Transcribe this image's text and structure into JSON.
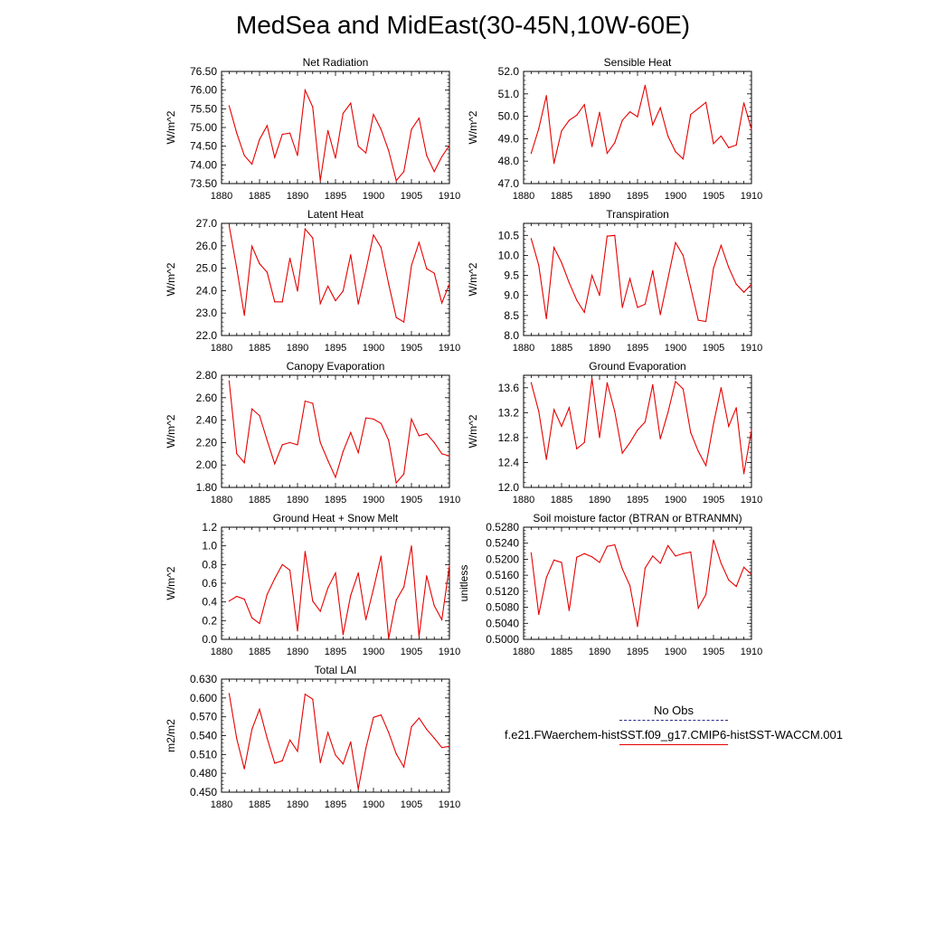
{
  "title": "MedSea and MidEast(30-45N,10W-60E)",
  "line_color": "#e60000",
  "legend": {
    "entries": [
      {
        "label": "No Obs",
        "style": "dashed",
        "color": "#2b2b8a"
      },
      {
        "label": "f.e21.FWaerchem-histSST.f09_g17.CMIP6-histSST-WACCM.001",
        "style": "solid",
        "color": "#e60000"
      }
    ]
  },
  "chart_data": [
    {
      "type": "line",
      "title": "Net Radiation",
      "ylabel": "W/m^2",
      "x": [
        1881,
        1882,
        1883,
        1884,
        1885,
        1886,
        1887,
        1888,
        1889,
        1890,
        1891,
        1892,
        1893,
        1894,
        1895,
        1896,
        1897,
        1898,
        1899,
        1900,
        1901,
        1902,
        1903,
        1904,
        1905,
        1906,
        1907,
        1908,
        1909,
        1910
      ],
      "ylim": [
        73.5,
        76.5
      ],
      "yticks": [
        "73.50",
        "74.00",
        "74.50",
        "75.00",
        "75.50",
        "76.00",
        "76.50"
      ],
      "xlim": [
        1880,
        1910
      ],
      "xticks": [
        "1880",
        "1885",
        "1890",
        "1895",
        "1900",
        "1905",
        "1910"
      ],
      "values": [
        75.58,
        74.85,
        74.25,
        74.02,
        74.68,
        75.05,
        74.2,
        74.82,
        74.85,
        74.25,
        76.0,
        75.55,
        73.58,
        74.92,
        74.18,
        75.38,
        75.65,
        74.5,
        74.32,
        75.35,
        74.95,
        74.38,
        73.58,
        73.82,
        74.95,
        75.25,
        74.25,
        73.82,
        74.22,
        74.52
      ]
    },
    {
      "type": "line",
      "title": "Sensible Heat",
      "ylabel": "W/m^2",
      "x": [
        1881,
        1882,
        1883,
        1884,
        1885,
        1886,
        1887,
        1888,
        1889,
        1890,
        1891,
        1892,
        1893,
        1894,
        1895,
        1896,
        1897,
        1898,
        1899,
        1900,
        1901,
        1902,
        1903,
        1904,
        1905,
        1906,
        1907,
        1908,
        1909,
        1910
      ],
      "ylim": [
        47.0,
        52.0
      ],
      "yticks": [
        "47.0",
        "48.0",
        "49.0",
        "50.0",
        "51.0",
        "52.0"
      ],
      "xlim": [
        1880,
        1910
      ],
      "xticks": [
        "1880",
        "1885",
        "1890",
        "1895",
        "1900",
        "1905",
        "1910"
      ],
      "values": [
        48.35,
        49.45,
        50.92,
        47.9,
        49.35,
        49.82,
        50.05,
        50.52,
        48.65,
        50.18,
        48.35,
        48.82,
        49.82,
        50.2,
        49.98,
        51.38,
        49.62,
        50.38,
        49.12,
        48.42,
        48.1,
        50.08,
        50.35,
        50.62,
        48.78,
        49.12,
        48.6,
        48.72,
        50.6,
        49.42
      ]
    },
    {
      "type": "line",
      "title": "Latent Heat",
      "ylabel": "W/m^2",
      "x": [
        1881,
        1882,
        1883,
        1884,
        1885,
        1886,
        1887,
        1888,
        1889,
        1890,
        1891,
        1892,
        1893,
        1894,
        1895,
        1896,
        1897,
        1898,
        1899,
        1900,
        1901,
        1902,
        1903,
        1904,
        1905,
        1906,
        1907,
        1908,
        1909,
        1910
      ],
      "ylim": [
        22.0,
        27.0
      ],
      "yticks": [
        "22.0",
        "23.0",
        "24.0",
        "25.0",
        "26.0",
        "27.0"
      ],
      "xlim": [
        1880,
        1910
      ],
      "xticks": [
        "1880",
        "1885",
        "1890",
        "1895",
        "1900",
        "1905",
        "1910"
      ],
      "values": [
        26.9,
        25.0,
        22.9,
        25.98,
        25.2,
        24.82,
        23.5,
        23.5,
        25.45,
        23.98,
        26.75,
        26.35,
        23.42,
        24.2,
        23.55,
        23.98,
        25.6,
        23.4,
        24.9,
        26.48,
        25.92,
        24.3,
        22.8,
        22.6,
        25.12,
        26.15,
        24.98,
        24.78,
        23.45,
        24.3
      ]
    },
    {
      "type": "line",
      "title": "Transpiration",
      "ylabel": "W/m^2",
      "x": [
        1881,
        1882,
        1883,
        1884,
        1885,
        1886,
        1887,
        1888,
        1889,
        1890,
        1891,
        1892,
        1893,
        1894,
        1895,
        1896,
        1897,
        1898,
        1899,
        1900,
        1901,
        1902,
        1903,
        1904,
        1905,
        1906,
        1907,
        1908,
        1909,
        1910
      ],
      "ylim": [
        8.0,
        10.8
      ],
      "yticks": [
        "8.0",
        "8.5",
        "9.0",
        "9.5",
        "10.0",
        "10.5"
      ],
      "xlim": [
        1880,
        1910
      ],
      "xticks": [
        "1880",
        "1885",
        "1890",
        "1895",
        "1900",
        "1905",
        "1910"
      ],
      "values": [
        10.42,
        9.75,
        8.42,
        10.2,
        9.82,
        9.32,
        8.88,
        8.58,
        9.5,
        9.0,
        10.48,
        10.5,
        8.7,
        9.42,
        8.7,
        8.78,
        9.62,
        8.52,
        9.42,
        10.32,
        10.0,
        9.2,
        8.38,
        8.35,
        9.68,
        10.25,
        9.7,
        9.28,
        9.08,
        9.28
      ]
    },
    {
      "type": "line",
      "title": "Canopy Evaporation",
      "ylabel": "W/m^2",
      "x": [
        1881,
        1882,
        1883,
        1884,
        1885,
        1886,
        1887,
        1888,
        1889,
        1890,
        1891,
        1892,
        1893,
        1894,
        1895,
        1896,
        1897,
        1898,
        1899,
        1900,
        1901,
        1902,
        1903,
        1904,
        1905,
        1906,
        1907,
        1908,
        1909,
        1910
      ],
      "ylim": [
        1.8,
        2.8
      ],
      "yticks": [
        "1.80",
        "2.00",
        "2.20",
        "2.40",
        "2.60",
        "2.80"
      ],
      "xlim": [
        1880,
        1910
      ],
      "xticks": [
        "1880",
        "1885",
        "1890",
        "1895",
        "1900",
        "1905",
        "1910"
      ],
      "values": [
        2.75,
        2.1,
        2.02,
        2.5,
        2.44,
        2.22,
        2.01,
        2.18,
        2.2,
        2.18,
        2.57,
        2.55,
        2.2,
        2.04,
        1.89,
        2.12,
        2.29,
        2.11,
        2.42,
        2.41,
        2.37,
        2.22,
        1.84,
        1.92,
        2.41,
        2.26,
        2.28,
        2.2,
        2.1,
        2.08
      ]
    },
    {
      "type": "line",
      "title": "Ground Evaporation",
      "ylabel": "W/m^2",
      "x": [
        1881,
        1882,
        1883,
        1884,
        1885,
        1886,
        1887,
        1888,
        1889,
        1890,
        1891,
        1892,
        1893,
        1894,
        1895,
        1896,
        1897,
        1898,
        1899,
        1900,
        1901,
        1902,
        1903,
        1904,
        1905,
        1906,
        1907,
        1908,
        1909,
        1910
      ],
      "ylim": [
        12.0,
        13.8
      ],
      "yticks": [
        "12.0",
        "12.4",
        "12.8",
        "13.2",
        "13.6"
      ],
      "xlim": [
        1880,
        1910
      ],
      "xticks": [
        "1880",
        "1885",
        "1890",
        "1895",
        "1900",
        "1905",
        "1910"
      ],
      "values": [
        13.68,
        13.22,
        12.45,
        13.25,
        12.98,
        13.28,
        12.62,
        12.72,
        13.75,
        12.8,
        13.68,
        13.22,
        12.55,
        12.72,
        12.92,
        13.05,
        13.65,
        12.78,
        13.2,
        13.7,
        13.58,
        12.88,
        12.58,
        12.35,
        13.02,
        13.6,
        12.98,
        13.28,
        12.22,
        12.92
      ]
    },
    {
      "type": "line",
      "title": "Ground Heat + Snow Melt",
      "ylabel": "W/m^2",
      "x": [
        1881,
        1882,
        1883,
        1884,
        1885,
        1886,
        1887,
        1888,
        1889,
        1890,
        1891,
        1892,
        1893,
        1894,
        1895,
        1896,
        1897,
        1898,
        1899,
        1900,
        1901,
        1902,
        1903,
        1904,
        1905,
        1906,
        1907,
        1908,
        1909,
        1910
      ],
      "ylim": [
        0.0,
        1.2
      ],
      "yticks": [
        "0.0",
        "0.2",
        "0.4",
        "0.6",
        "0.8",
        "1.0",
        "1.2"
      ],
      "xlim": [
        1880,
        1910
      ],
      "xticks": [
        "1880",
        "1885",
        "1890",
        "1895",
        "1900",
        "1905",
        "1910"
      ],
      "values": [
        0.41,
        0.46,
        0.43,
        0.23,
        0.17,
        0.48,
        0.65,
        0.8,
        0.74,
        0.09,
        0.94,
        0.41,
        0.3,
        0.55,
        0.71,
        0.05,
        0.47,
        0.71,
        0.21,
        0.54,
        0.89,
        0.01,
        0.42,
        0.56,
        1.0,
        0.03,
        0.68,
        0.36,
        0.21,
        0.79
      ]
    },
    {
      "type": "line",
      "title": "Soil moisture factor (BTRAN or BTRANMN)",
      "ylabel": "unitless",
      "x": [
        1881,
        1882,
        1883,
        1884,
        1885,
        1886,
        1887,
        1888,
        1889,
        1890,
        1891,
        1892,
        1893,
        1894,
        1895,
        1896,
        1897,
        1898,
        1899,
        1900,
        1901,
        1902,
        1903,
        1904,
        1905,
        1906,
        1907,
        1908,
        1909,
        1910
      ],
      "ylim": [
        0.5,
        0.528
      ],
      "yticks": [
        "0.5000",
        "0.5040",
        "0.5080",
        "0.5120",
        "0.5160",
        "0.5200",
        "0.5240",
        "0.5280"
      ],
      "xlim": [
        1880,
        1910
      ],
      "xticks": [
        "1880",
        "1885",
        "1890",
        "1895",
        "1900",
        "1905",
        "1910"
      ],
      "values": [
        0.5216,
        0.5062,
        0.5154,
        0.5198,
        0.5192,
        0.5072,
        0.5205,
        0.5214,
        0.5206,
        0.5192,
        0.5232,
        0.5236,
        0.5176,
        0.5134,
        0.5032,
        0.5178,
        0.5208,
        0.519,
        0.5234,
        0.5208,
        0.5214,
        0.5218,
        0.5078,
        0.5112,
        0.5248,
        0.519,
        0.5148,
        0.5132,
        0.518,
        0.5162
      ]
    },
    {
      "type": "line",
      "title": "Total LAI",
      "ylabel": "m2/m2",
      "x": [
        1881,
        1882,
        1883,
        1884,
        1885,
        1886,
        1887,
        1888,
        1889,
        1890,
        1891,
        1892,
        1893,
        1894,
        1895,
        1896,
        1897,
        1898,
        1899,
        1900,
        1901,
        1902,
        1903,
        1904,
        1905,
        1906,
        1907,
        1908,
        1909,
        1910
      ],
      "ylim": [
        0.45,
        0.63
      ],
      "yticks": [
        "0.450",
        "0.480",
        "0.510",
        "0.540",
        "0.570",
        "0.600",
        "0.630"
      ],
      "xlim": [
        1880,
        1910
      ],
      "xticks": [
        "1880",
        "1885",
        "1890",
        "1895",
        "1900",
        "1905",
        "1910"
      ],
      "values": [
        0.607,
        0.535,
        0.487,
        0.55,
        0.582,
        0.536,
        0.496,
        0.5,
        0.533,
        0.515,
        0.606,
        0.598,
        0.497,
        0.545,
        0.509,
        0.495,
        0.53,
        0.455,
        0.52,
        0.569,
        0.573,
        0.545,
        0.511,
        0.49,
        0.554,
        0.568,
        0.55,
        0.536,
        0.521,
        0.523
      ]
    }
  ]
}
